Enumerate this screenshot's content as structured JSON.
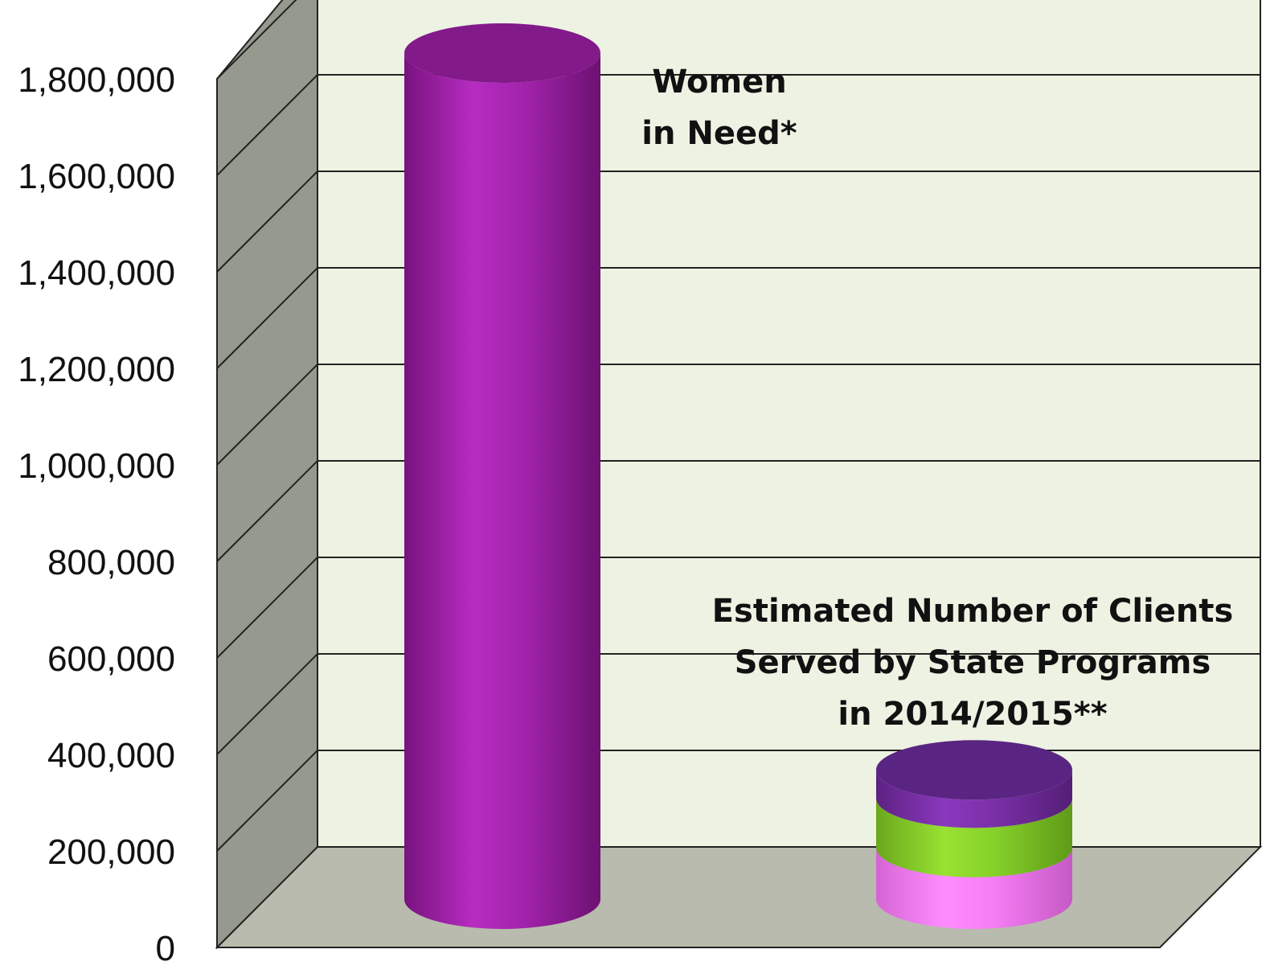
{
  "chart_data": {
    "type": "bar",
    "style": "3d-cylinder",
    "ylim": [
      0,
      1800000
    ],
    "y_ticks": [
      "0",
      "200,000",
      "400,000",
      "600,000",
      "800,000",
      "1,000,000",
      "1,200,000",
      "1,400,000",
      "1,600,000",
      "1,800,000"
    ],
    "grid": true,
    "bars": [
      {
        "label_lines": [
          "Women",
          "in Need*"
        ],
        "segments": [
          {
            "value": 1800000,
            "color": "#a323ad"
          }
        ]
      },
      {
        "label_lines": [
          "Estimated Number of Clients",
          "Served by State Programs",
          "in 2014/2015**"
        ],
        "segments": [
          {
            "value": 110000,
            "color": "#f57df5"
          },
          {
            "value": 105000,
            "color": "#86d12a"
          },
          {
            "value": 60000,
            "color": "#7a30a8"
          }
        ]
      }
    ],
    "colors": {
      "back_wall": "#edf2e3",
      "side_wall": "#969a8e",
      "floor": "#b8bbad"
    }
  }
}
